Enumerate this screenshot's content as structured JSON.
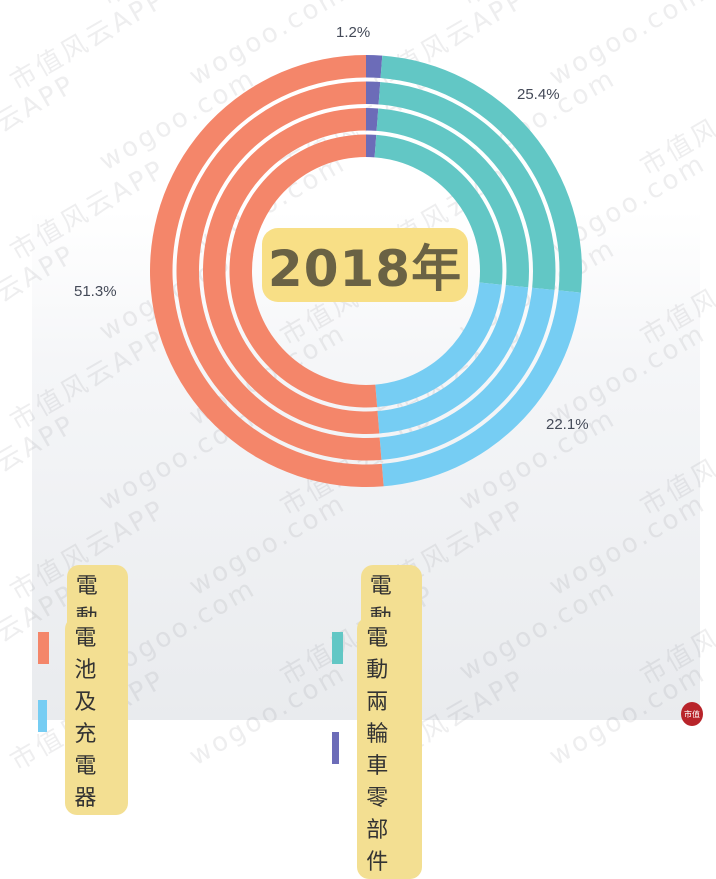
{
  "chart_data": {
    "type": "pie",
    "subtype": "concentric-donut",
    "title": "2018年",
    "categories": [
      "電動踏板車",
      "電動自行車",
      "電池及充電器",
      "電動兩輪車零部件"
    ],
    "values": [
      51.3,
      25.4,
      22.1,
      1.2
    ],
    "unit": "%",
    "colors": [
      "#f4866a",
      "#62c7c5",
      "#76cdf3",
      "#6c6cb8"
    ],
    "data_labels": [
      "51.3%",
      "25.4%",
      "22.1%",
      "1.2%"
    ],
    "legend_position": "bottom",
    "ring_count": 4
  },
  "center": {
    "title": "2018年"
  },
  "labels": {
    "scooter": "51.3%",
    "bicycle": "25.4%",
    "battery": "22.1%",
    "parts": "1.2%"
  },
  "legend": {
    "items": [
      {
        "label": "電動踏板車",
        "color": "#f4866a"
      },
      {
        "label": "電動自行車",
        "color": "#62c7c5"
      },
      {
        "label": "電池及充電器",
        "color": "#76cdf3"
      },
      {
        "label": "電動兩輪車零部件",
        "color": "#6c6cb8"
      }
    ]
  },
  "watermark": {
    "text_cn": "市值风云APP",
    "text_en": "wogoo.com"
  },
  "seal": {
    "text": "市值"
  }
}
